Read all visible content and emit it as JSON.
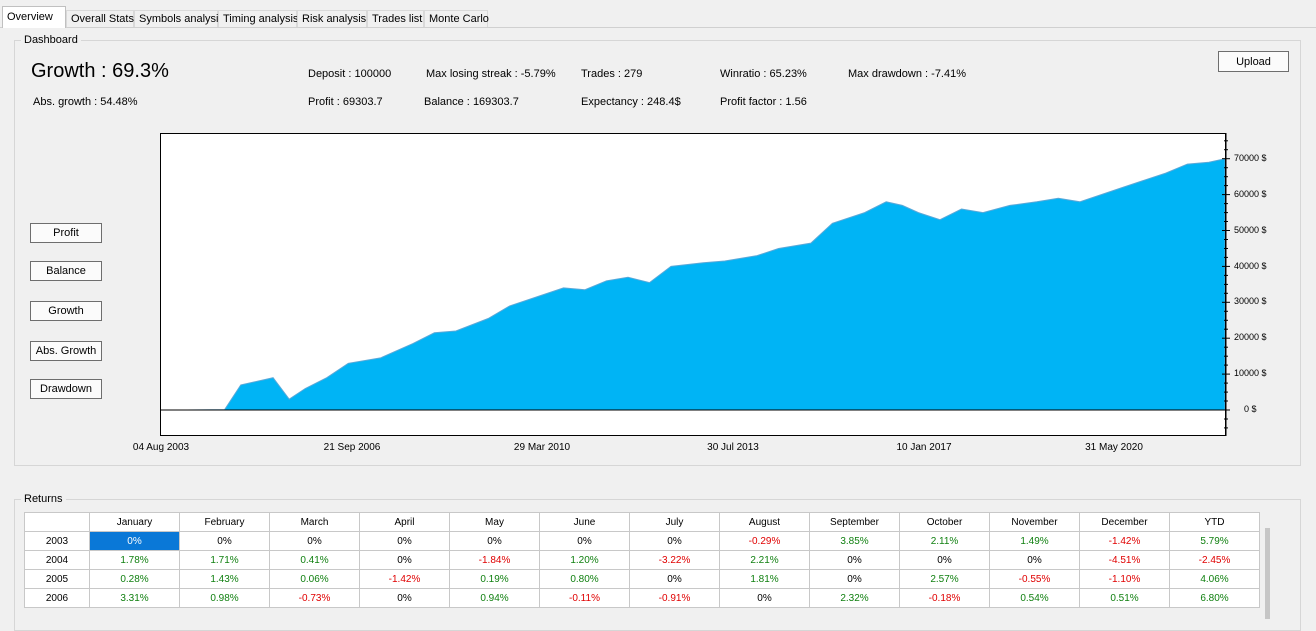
{
  "tabs": [
    "Overview",
    "Overall Stats",
    "Symbols analysis",
    "Timing analysis",
    "Risk analysis",
    "Trades list",
    "Monte Carlo"
  ],
  "dashboard": {
    "title": "Dashboard",
    "growth_label": "Growth :",
    "growth_value": "69.3%",
    "abs_growth_label": "Abs. growth :",
    "abs_growth_value": "54.48%",
    "deposit_label": "Deposit :",
    "deposit_value": "100000",
    "profit_label": "Profit :",
    "profit_value": "69303.7",
    "max_losing_streak_label": "Max losing streak :",
    "max_losing_streak_value": "-5.79%",
    "balance_label": "Balance :",
    "balance_value": "169303.7",
    "trades_label": "Trades :",
    "trades_value": "279",
    "expectancy_label": "Expectancy :",
    "expectancy_value": "248.4$",
    "winratio_label": "Winratio :",
    "winratio_value": "65.23%",
    "profit_factor_label": "Profit factor :",
    "profit_factor_value": "1.56",
    "max_drawdown_label": "Max drawdown :",
    "max_drawdown_value": "-7.41%",
    "upload_label": "Upload"
  },
  "chart_buttons": [
    "Profit",
    "Balance",
    "Growth",
    "Abs. Growth",
    "Drawdown"
  ],
  "chart_data": {
    "type": "area",
    "x_ticks": [
      "04 Aug 2003",
      "21 Sep 2006",
      "29 Mar 2010",
      "30 Jul 2013",
      "10 Jan 2017",
      "31 May 2020"
    ],
    "y_ticks": [
      "70000 $",
      "60000 $",
      "50000 $",
      "40000 $",
      "30000 $",
      "20000 $",
      "10000 $",
      "0 $"
    ],
    "ylim": [
      0,
      75000
    ],
    "fill_color": "#00b4f5",
    "x": [
      2003.0,
      2003.7,
      2004.0,
      2004.6,
      2004.9,
      2005.2,
      2005.6,
      2006.0,
      2006.6,
      2007.2,
      2007.6,
      2008.0,
      2008.6,
      2009.0,
      2009.6,
      2010.0,
      2010.4,
      2010.8,
      2011.2,
      2011.6,
      2012.0,
      2012.6,
      2013.0,
      2013.6,
      2014.0,
      2014.6,
      2015.0,
      2015.6,
      2016.0,
      2016.3,
      2016.6,
      2017.0,
      2017.4,
      2017.8,
      2018.3,
      2018.8,
      2019.2,
      2019.6,
      2020.0,
      2020.4,
      2020.8,
      2021.2,
      2021.6,
      2022.0,
      2022.3
    ],
    "values": [
      0,
      100,
      7000,
      9000,
      3000,
      6000,
      9000,
      13000,
      14500,
      18500,
      21500,
      22000,
      25500,
      29000,
      32000,
      34000,
      33500,
      36000,
      37000,
      35500,
      40000,
      41000,
      41500,
      43000,
      45000,
      46500,
      52000,
      55000,
      58000,
      57000,
      55000,
      53000,
      56000,
      55000,
      57000,
      58000,
      59000,
      58000,
      60000,
      62000,
      64000,
      66000,
      68500,
      69000,
      70000
    ]
  },
  "returns": {
    "title": "Returns",
    "columns": [
      "",
      "January",
      "February",
      "March",
      "April",
      "May",
      "June",
      "July",
      "August",
      "September",
      "October",
      "November",
      "December",
      "YTD"
    ],
    "rows": [
      [
        "2003",
        "0%",
        "0%",
        "0%",
        "0%",
        "0%",
        "0%",
        "0%",
        "-0.29%",
        "3.85%",
        "2.11%",
        "1.49%",
        "-1.42%",
        "5.79%"
      ],
      [
        "2004",
        "1.78%",
        "1.71%",
        "0.41%",
        "0%",
        "-1.84%",
        "1.20%",
        "-3.22%",
        "2.21%",
        "0%",
        "0%",
        "0%",
        "-4.51%",
        "-2.45%"
      ],
      [
        "2005",
        "0.28%",
        "1.43%",
        "0.06%",
        "-1.42%",
        "0.19%",
        "0.80%",
        "0%",
        "1.81%",
        "0%",
        "2.57%",
        "-0.55%",
        "-1.10%",
        "4.06%"
      ],
      [
        "2006",
        "3.31%",
        "0.98%",
        "-0.73%",
        "0%",
        "0.94%",
        "-0.11%",
        "-0.91%",
        "0%",
        "2.32%",
        "-0.18%",
        "0.54%",
        "0.51%",
        "6.80%"
      ]
    ]
  }
}
